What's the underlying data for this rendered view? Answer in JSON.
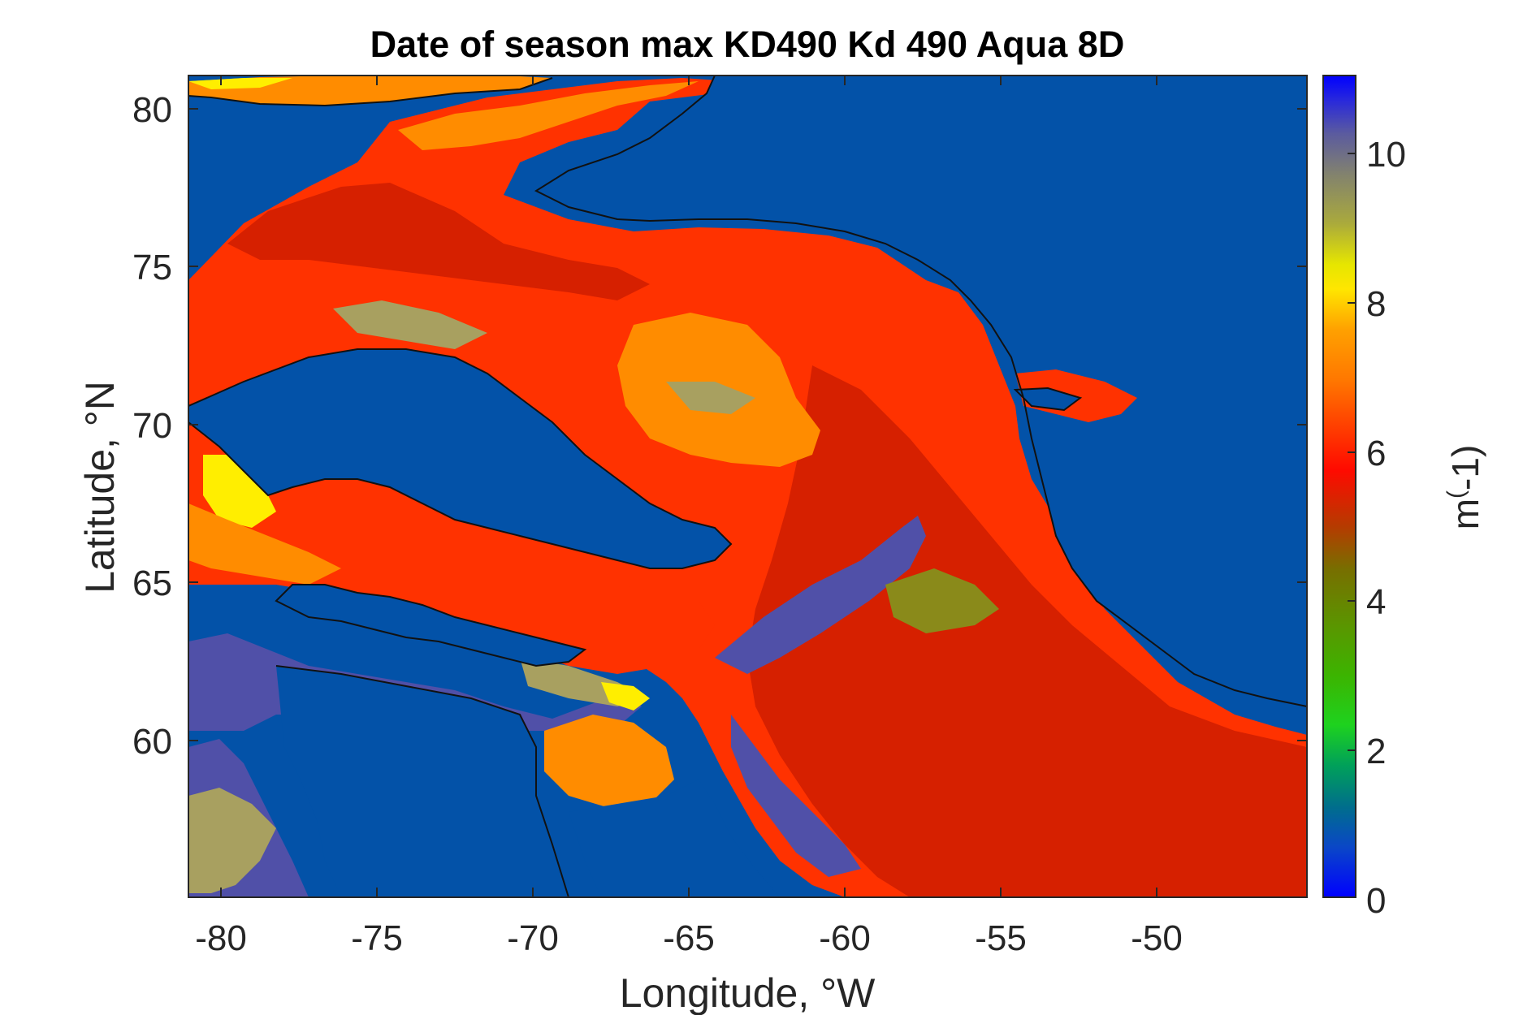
{
  "title": "Date of season max KD490 Kd 490 Aqua 8D",
  "xlabel": "Longitude, °W",
  "ylabel": "Latitude, °N",
  "colorbar_label": "m(-1)",
  "colorbar_label_base": "m",
  "colorbar_label_sup": "(",
  "colorbar_label_rest": "-1)",
  "x_ticks": [
    "-80",
    "-75",
    "-70",
    "-65",
    "-60",
    "-55",
    "-50"
  ],
  "y_ticks": [
    "80",
    "75",
    "70",
    "65",
    "60"
  ],
  "colorbar_ticks": [
    "10",
    "8",
    "6",
    "4",
    "2",
    "0"
  ],
  "colors": {
    "land_sea_mask": "#0352a8",
    "coastline": "#111111",
    "dark_red": "#d62000",
    "red_orange": "#ff3200",
    "orange": "#ff8c00",
    "yellow": "#ffee00",
    "khaki": "#a8a060",
    "olive": "#8a8a1a",
    "slate_blue": "#5050a8"
  },
  "chart_data": {
    "type": "heatmap",
    "title": "Date of season max KD490 Kd 490 Aqua 8D",
    "xlabel": "Longitude, °W",
    "ylabel": "Latitude, °N",
    "xlim": [
      -81,
      -45
    ],
    "ylim": [
      55,
      81
    ],
    "colorbar": {
      "label": "m(-1)",
      "range": [
        0,
        11
      ],
      "ticks": [
        0,
        2,
        4,
        6,
        8,
        10
      ],
      "colormap": [
        "#0000ff",
        "#2c5aa8",
        "#4a5aa0",
        "#5c5ca8",
        "#7878a0",
        "#8a8a80",
        "#a8a060",
        "#c8c040",
        "#ffff00",
        "#ffcc00",
        "#ff9900",
        "#ff6600",
        "#ff3300",
        "#cc3300",
        "#886600",
        "#668800",
        "#44aa00",
        "#00cc00",
        "#00aa66",
        "#008888",
        "#0033cc",
        "#0000ff"
      ]
    }
  }
}
